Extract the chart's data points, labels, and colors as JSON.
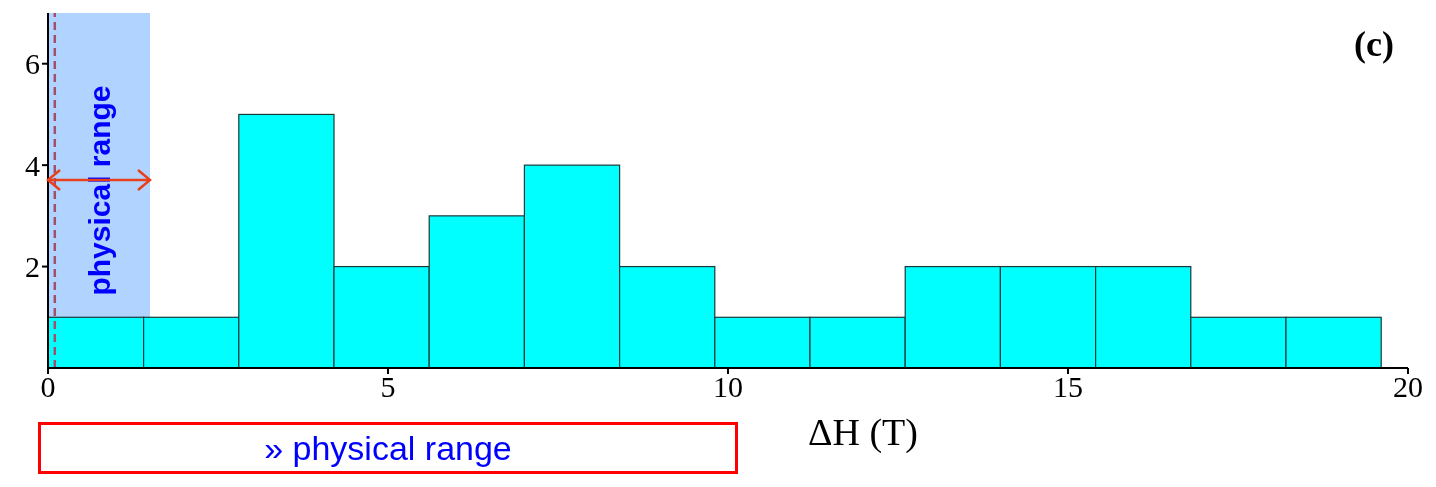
{
  "chart_data": {
    "type": "histogram",
    "xlabel": "ΔH (T)",
    "bins": [
      0,
      1.4,
      2.8,
      4.2,
      5.6,
      7.0,
      8.4,
      9.8,
      11.2,
      12.6,
      14.0,
      15.4,
      16.8,
      18.2,
      19.6
    ],
    "values": [
      1,
      1,
      5,
      2,
      3,
      4,
      2,
      1,
      1,
      2,
      2,
      2,
      1,
      1
    ],
    "color": "#00ffff",
    "xlim": [
      0,
      20
    ],
    "xticks": [
      0,
      5,
      10,
      15,
      20
    ],
    "ylim": [
      0,
      7
    ],
    "yticks": [
      2,
      4,
      6
    ],
    "bands": [
      {
        "axis": "x",
        "from": 0,
        "to": 1.5,
        "label": "physical range",
        "color": "#4f9fff"
      }
    ],
    "ref_lines": [
      {
        "axis": "x",
        "value": 0.1,
        "color": "#a05068",
        "line_style": "dashed"
      }
    ],
    "annotations": [
      "(c)",
      "» physical range"
    ]
  }
}
